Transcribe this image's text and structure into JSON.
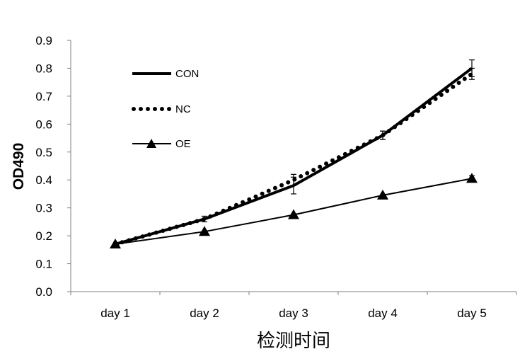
{
  "chart_data": {
    "type": "line",
    "title": "",
    "xlabel": "检测时间",
    "ylabel": "OD490",
    "categories": [
      "day 1",
      "day 2",
      "day 3",
      "day 4",
      "day 5"
    ],
    "ylim": [
      0,
      0.9
    ],
    "yticks": [
      "0.0",
      "0.1",
      "0.2",
      "0.3",
      "0.4",
      "0.5",
      "0.6",
      "0.7",
      "0.8",
      "0.9"
    ],
    "grid": false,
    "legend_position": "top-left",
    "series": [
      {
        "name": "CON",
        "style": "solid-thick",
        "values": [
          0.17,
          0.26,
          0.38,
          0.56,
          0.8
        ],
        "errors": [
          0.005,
          0.01,
          0.03,
          0.015,
          0.03
        ]
      },
      {
        "name": "NC",
        "style": "dotted",
        "values": [
          0.17,
          0.26,
          0.4,
          0.56,
          0.78
        ],
        "errors": [
          0.005,
          0.01,
          0.02,
          0.015,
          0.02
        ]
      },
      {
        "name": "OE",
        "style": "solid-triangle",
        "values": [
          0.17,
          0.215,
          0.275,
          0.345,
          0.405
        ],
        "errors": [
          0.005,
          0.005,
          0.005,
          0.005,
          0.01
        ]
      }
    ]
  }
}
